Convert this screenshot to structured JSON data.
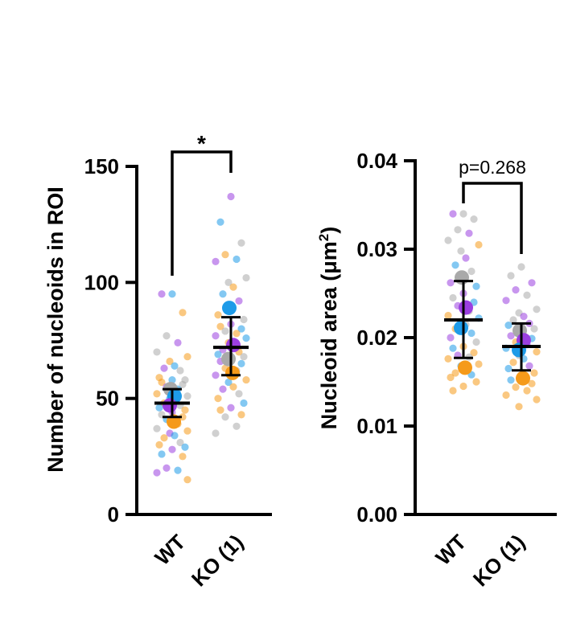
{
  "colors": {
    "gray": "#a9a9a9",
    "blue": "#1e9be8",
    "purple": "#9b3fe0",
    "orange": "#f59a1a",
    "axis": "#000000"
  },
  "chart_data": [
    {
      "type": "scatter",
      "ylabel": "Number of nucleoids in ROI",
      "ylim": [
        0,
        150
      ],
      "yticks": [
        "0",
        "50",
        "100",
        "150"
      ],
      "categories": [
        "WT",
        "KO (1)"
      ],
      "significance": "*",
      "groups": [
        {
          "name": "WT",
          "mean": 48,
          "error_low": 42,
          "error_high": 54,
          "replicate_means": [
            {
              "color": "gray",
              "value": 54
            },
            {
              "color": "blue",
              "value": 51
            },
            {
              "color": "purple",
              "value": 47
            },
            {
              "color": "orange",
              "value": 40
            }
          ],
          "points": [
            {
              "color": "blue",
              "value": 95
            },
            {
              "color": "purple",
              "value": 95
            },
            {
              "color": "orange",
              "value": 87
            },
            {
              "color": "gray",
              "value": 77
            },
            {
              "color": "purple",
              "value": 74
            },
            {
              "color": "gray",
              "value": 70
            },
            {
              "color": "orange",
              "value": 68
            },
            {
              "color": "orange",
              "value": 66
            },
            {
              "color": "blue",
              "value": 64
            },
            {
              "color": "purple",
              "value": 63
            },
            {
              "color": "gray",
              "value": 62
            },
            {
              "color": "orange",
              "value": 59
            },
            {
              "color": "gray",
              "value": 58
            },
            {
              "color": "blue",
              "value": 58
            },
            {
              "color": "orange",
              "value": 57
            },
            {
              "color": "gray",
              "value": 56
            },
            {
              "color": "purple",
              "value": 55
            },
            {
              "color": "blue",
              "value": 54
            },
            {
              "color": "orange",
              "value": 52
            },
            {
              "color": "gray",
              "value": 51
            },
            {
              "color": "blue",
              "value": 50
            },
            {
              "color": "purple",
              "value": 49
            },
            {
              "color": "orange",
              "value": 48
            },
            {
              "color": "gray",
              "value": 47
            },
            {
              "color": "blue",
              "value": 46
            },
            {
              "color": "orange",
              "value": 45
            },
            {
              "color": "purple",
              "value": 44
            },
            {
              "color": "gray",
              "value": 43
            },
            {
              "color": "orange",
              "value": 42
            },
            {
              "color": "blue",
              "value": 41
            },
            {
              "color": "orange",
              "value": 39
            },
            {
              "color": "gray",
              "value": 37
            },
            {
              "color": "orange",
              "value": 36
            },
            {
              "color": "purple",
              "value": 35
            },
            {
              "color": "blue",
              "value": 34
            },
            {
              "color": "orange",
              "value": 33
            },
            {
              "color": "gray",
              "value": 31
            },
            {
              "color": "orange",
              "value": 30
            },
            {
              "color": "blue",
              "value": 29
            },
            {
              "color": "purple",
              "value": 28
            },
            {
              "color": "blue",
              "value": 26
            },
            {
              "color": "orange",
              "value": 25
            },
            {
              "color": "purple",
              "value": 20
            },
            {
              "color": "blue",
              "value": 19
            },
            {
              "color": "purple",
              "value": 18
            },
            {
              "color": "orange",
              "value": 15
            }
          ]
        },
        {
          "name": "KO (1)",
          "mean": 72,
          "error_low": 60,
          "error_high": 85,
          "replicate_means": [
            {
              "color": "blue",
              "value": 89
            },
            {
              "color": "purple",
              "value": 73
            },
            {
              "color": "gray",
              "value": 67
            },
            {
              "color": "orange",
              "value": 61
            }
          ],
          "points": [
            {
              "color": "purple",
              "value": 137
            },
            {
              "color": "blue",
              "value": 126
            },
            {
              "color": "gray",
              "value": 117
            },
            {
              "color": "orange",
              "value": 112
            },
            {
              "color": "blue",
              "value": 110
            },
            {
              "color": "purple",
              "value": 109
            },
            {
              "color": "gray",
              "value": 102
            },
            {
              "color": "gray",
              "value": 100
            },
            {
              "color": "orange",
              "value": 98
            },
            {
              "color": "blue",
              "value": 95
            },
            {
              "color": "purple",
              "value": 92
            },
            {
              "color": "orange",
              "value": 86
            },
            {
              "color": "gray",
              "value": 84
            },
            {
              "color": "purple",
              "value": 82
            },
            {
              "color": "orange",
              "value": 81
            },
            {
              "color": "blue",
              "value": 80
            },
            {
              "color": "gray",
              "value": 79
            },
            {
              "color": "orange",
              "value": 78
            },
            {
              "color": "purple",
              "value": 77
            },
            {
              "color": "blue",
              "value": 76
            },
            {
              "color": "orange",
              "value": 74
            },
            {
              "color": "gray",
              "value": 73
            },
            {
              "color": "purple",
              "value": 71
            },
            {
              "color": "orange",
              "value": 70
            },
            {
              "color": "blue",
              "value": 69
            },
            {
              "color": "gray",
              "value": 68
            },
            {
              "color": "orange",
              "value": 67
            },
            {
              "color": "purple",
              "value": 66
            },
            {
              "color": "blue",
              "value": 65
            },
            {
              "color": "orange",
              "value": 63
            },
            {
              "color": "gray",
              "value": 62
            },
            {
              "color": "purple",
              "value": 60
            },
            {
              "color": "orange",
              "value": 58
            },
            {
              "color": "blue",
              "value": 57
            },
            {
              "color": "orange",
              "value": 55
            },
            {
              "color": "purple",
              "value": 54
            },
            {
              "color": "gray",
              "value": 52
            },
            {
              "color": "orange",
              "value": 50
            },
            {
              "color": "blue",
              "value": 48
            },
            {
              "color": "purple",
              "value": 46
            },
            {
              "color": "orange",
              "value": 45
            },
            {
              "color": "orange",
              "value": 43
            },
            {
              "color": "gray",
              "value": 42
            },
            {
              "color": "gray",
              "value": 38
            },
            {
              "color": "gray",
              "value": 35
            }
          ]
        }
      ]
    },
    {
      "type": "scatter",
      "ylabel": "Nucleoid area (μm²)",
      "ylabel_main": "Nucleoid area (μm",
      "ylabel_sup": "2",
      "ylabel_close": ")",
      "ylim": [
        0,
        0.04
      ],
      "yticks": [
        "0.00",
        "0.01",
        "0.02",
        "0.03",
        "0.04"
      ],
      "categories": [
        "WT",
        "KO (1)"
      ],
      "significance": "p=0.268",
      "groups": [
        {
          "name": "WT",
          "mean": 0.022,
          "error_low": 0.0177,
          "error_high": 0.0264,
          "replicate_means": [
            {
              "color": "gray",
              "value": 0.0268
            },
            {
              "color": "purple",
              "value": 0.0234
            },
            {
              "color": "blue",
              "value": 0.0211
            },
            {
              "color": "orange",
              "value": 0.0166
            }
          ],
          "points": [
            {
              "color": "gray",
              "value": 0.034
            },
            {
              "color": "purple",
              "value": 0.034
            },
            {
              "color": "gray",
              "value": 0.0334
            },
            {
              "color": "gray",
              "value": 0.0322
            },
            {
              "color": "purple",
              "value": 0.0318
            },
            {
              "color": "gray",
              "value": 0.031
            },
            {
              "color": "orange",
              "value": 0.0305
            },
            {
              "color": "gray",
              "value": 0.0298
            },
            {
              "color": "purple",
              "value": 0.029
            },
            {
              "color": "blue",
              "value": 0.0282
            },
            {
              "color": "gray",
              "value": 0.0275
            },
            {
              "color": "purple",
              "value": 0.0262
            },
            {
              "color": "blue",
              "value": 0.0258
            },
            {
              "color": "purple",
              "value": 0.025
            },
            {
              "color": "gray",
              "value": 0.0245
            },
            {
              "color": "blue",
              "value": 0.024
            },
            {
              "color": "purple",
              "value": 0.0236
            },
            {
              "color": "gray",
              "value": 0.023
            },
            {
              "color": "orange",
              "value": 0.0225
            },
            {
              "color": "blue",
              "value": 0.0222
            },
            {
              "color": "purple",
              "value": 0.0218
            },
            {
              "color": "gray",
              "value": 0.0215
            },
            {
              "color": "orange",
              "value": 0.021
            },
            {
              "color": "blue",
              "value": 0.0205
            },
            {
              "color": "purple",
              "value": 0.02
            },
            {
              "color": "gray",
              "value": 0.0195
            },
            {
              "color": "orange",
              "value": 0.019
            },
            {
              "color": "blue",
              "value": 0.0188
            },
            {
              "color": "orange",
              "value": 0.0183
            },
            {
              "color": "purple",
              "value": 0.018
            },
            {
              "color": "gray",
              "value": 0.0178
            },
            {
              "color": "orange",
              "value": 0.0176
            },
            {
              "color": "orange",
              "value": 0.017
            },
            {
              "color": "blue",
              "value": 0.0168
            },
            {
              "color": "orange",
              "value": 0.0164
            },
            {
              "color": "orange",
              "value": 0.016
            },
            {
              "color": "blue",
              "value": 0.0158
            },
            {
              "color": "orange",
              "value": 0.0155
            },
            {
              "color": "orange",
              "value": 0.015
            },
            {
              "color": "orange",
              "value": 0.0145
            },
            {
              "color": "orange",
              "value": 0.014
            }
          ]
        },
        {
          "name": "KO (1)",
          "mean": 0.019,
          "error_low": 0.0163,
          "error_high": 0.0216,
          "replicate_means": [
            {
              "color": "gray",
              "value": 0.0208
            },
            {
              "color": "purple",
              "value": 0.0197
            },
            {
              "color": "blue",
              "value": 0.0186
            },
            {
              "color": "orange",
              "value": 0.0154
            }
          ],
          "points": [
            {
              "color": "gray",
              "value": 0.028
            },
            {
              "color": "gray",
              "value": 0.027
            },
            {
              "color": "purple",
              "value": 0.0262
            },
            {
              "color": "purple",
              "value": 0.0254
            },
            {
              "color": "gray",
              "value": 0.0248
            },
            {
              "color": "purple",
              "value": 0.0242
            },
            {
              "color": "gray",
              "value": 0.0232
            },
            {
              "color": "gray",
              "value": 0.0228
            },
            {
              "color": "purple",
              "value": 0.0224
            },
            {
              "color": "gray",
              "value": 0.022
            },
            {
              "color": "purple",
              "value": 0.0216
            },
            {
              "color": "blue",
              "value": 0.0214
            },
            {
              "color": "gray",
              "value": 0.021
            },
            {
              "color": "orange",
              "value": 0.0206
            },
            {
              "color": "purple",
              "value": 0.0202
            },
            {
              "color": "blue",
              "value": 0.0199
            },
            {
              "color": "orange",
              "value": 0.0195
            },
            {
              "color": "purple",
              "value": 0.0192
            },
            {
              "color": "blue",
              "value": 0.0188
            },
            {
              "color": "orange",
              "value": 0.0184
            },
            {
              "color": "gray",
              "value": 0.018
            },
            {
              "color": "blue",
              "value": 0.0176
            },
            {
              "color": "orange",
              "value": 0.0172
            },
            {
              "color": "purple",
              "value": 0.0168
            },
            {
              "color": "blue",
              "value": 0.0165
            },
            {
              "color": "orange",
              "value": 0.016
            },
            {
              "color": "orange",
              "value": 0.0156
            },
            {
              "color": "blue",
              "value": 0.0152
            },
            {
              "color": "orange",
              "value": 0.0148
            },
            {
              "color": "orange",
              "value": 0.0144
            },
            {
              "color": "orange",
              "value": 0.014
            },
            {
              "color": "orange",
              "value": 0.0135
            },
            {
              "color": "orange",
              "value": 0.013
            },
            {
              "color": "orange",
              "value": 0.0122
            }
          ]
        }
      ]
    }
  ]
}
